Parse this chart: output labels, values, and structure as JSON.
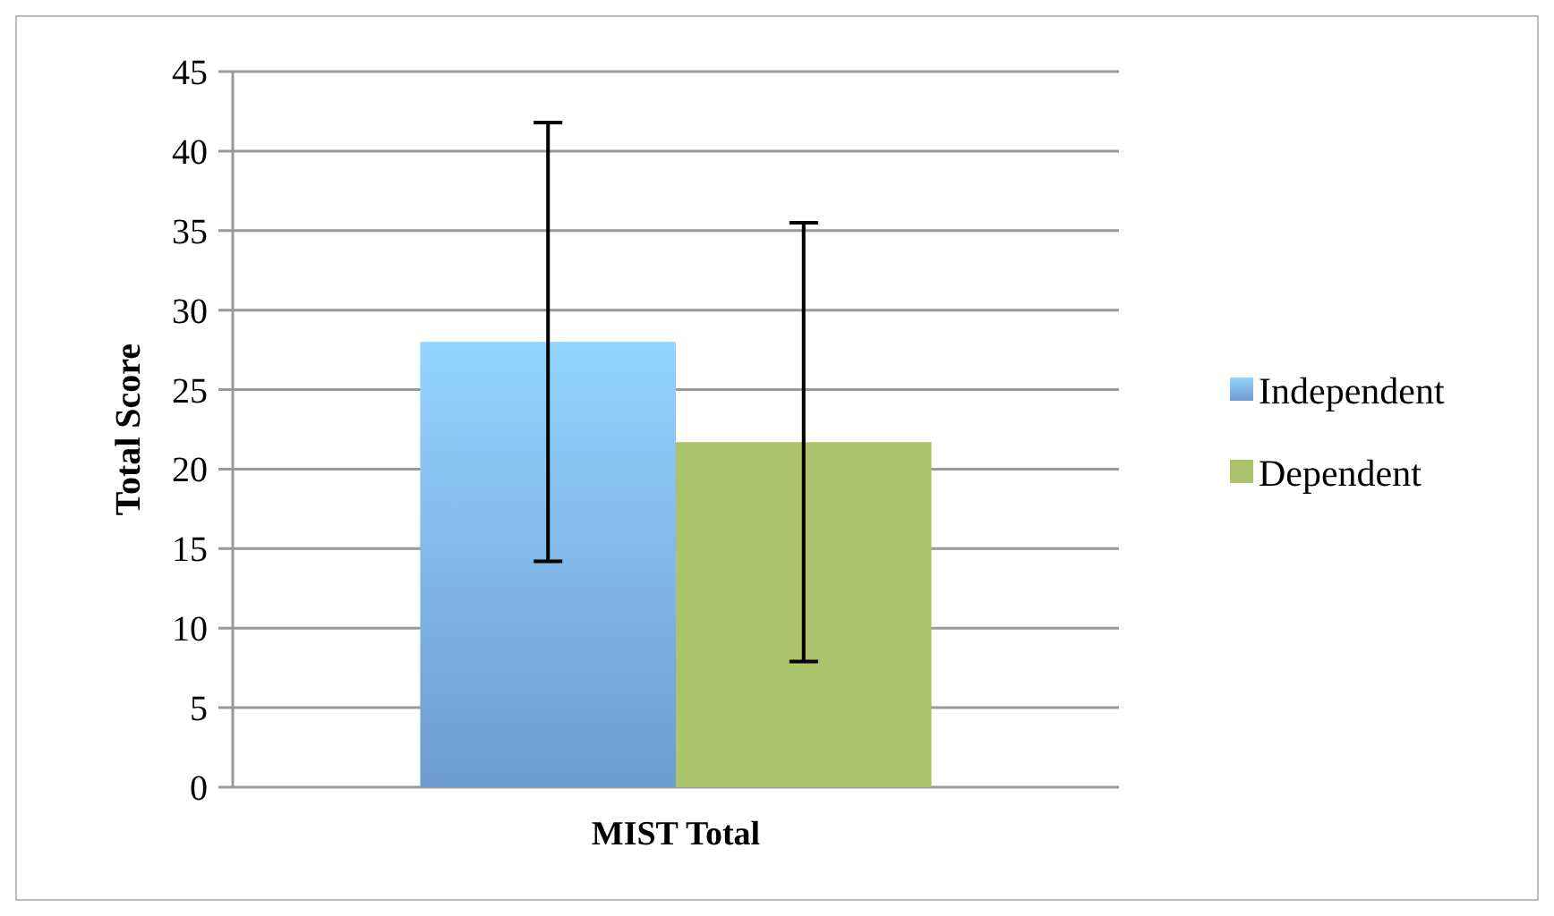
{
  "chart_data": {
    "type": "bar",
    "ylabel": "Total Score",
    "categories": [
      "MIST Total"
    ],
    "series": [
      {
        "name": "Independent",
        "color": "#7aaee8",
        "values": [
          28.0
        ],
        "errors": [
          13.8
        ]
      },
      {
        "name": "Dependent",
        "color": "#abc46c",
        "values": [
          21.7
        ],
        "errors": [
          13.8
        ]
      }
    ],
    "ylim": [
      0,
      45
    ],
    "yticks": [
      0,
      5,
      10,
      15,
      20,
      25,
      30,
      35,
      40,
      45
    ],
    "grid": "y",
    "legend": "right"
  }
}
